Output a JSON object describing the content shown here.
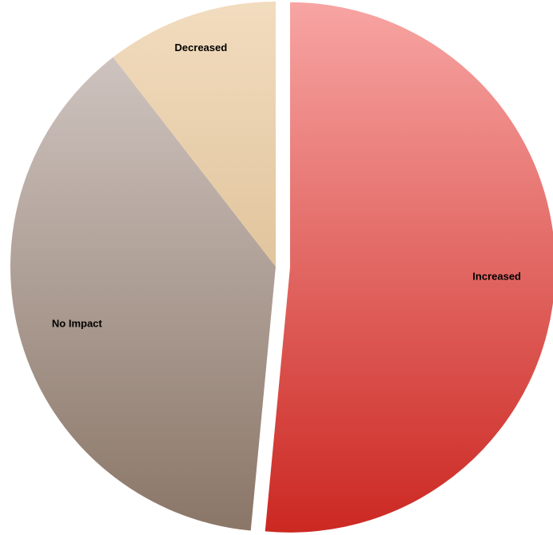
{
  "chart_data": {
    "type": "pie",
    "title": "",
    "categories": [
      "Increased",
      "No Impact",
      "Decreased"
    ],
    "values": [
      51.5,
      38.0,
      10.5
    ],
    "colors": {
      "Increased": [
        "#f7a5a3",
        "#cc2822"
      ],
      "No Impact": [
        "#d6ccc9",
        "#8a7667"
      ],
      "Decreased": [
        "#f2dcbf",
        "#cfad7a"
      ]
    },
    "exploded": [
      "Increased"
    ],
    "legend": "none"
  }
}
